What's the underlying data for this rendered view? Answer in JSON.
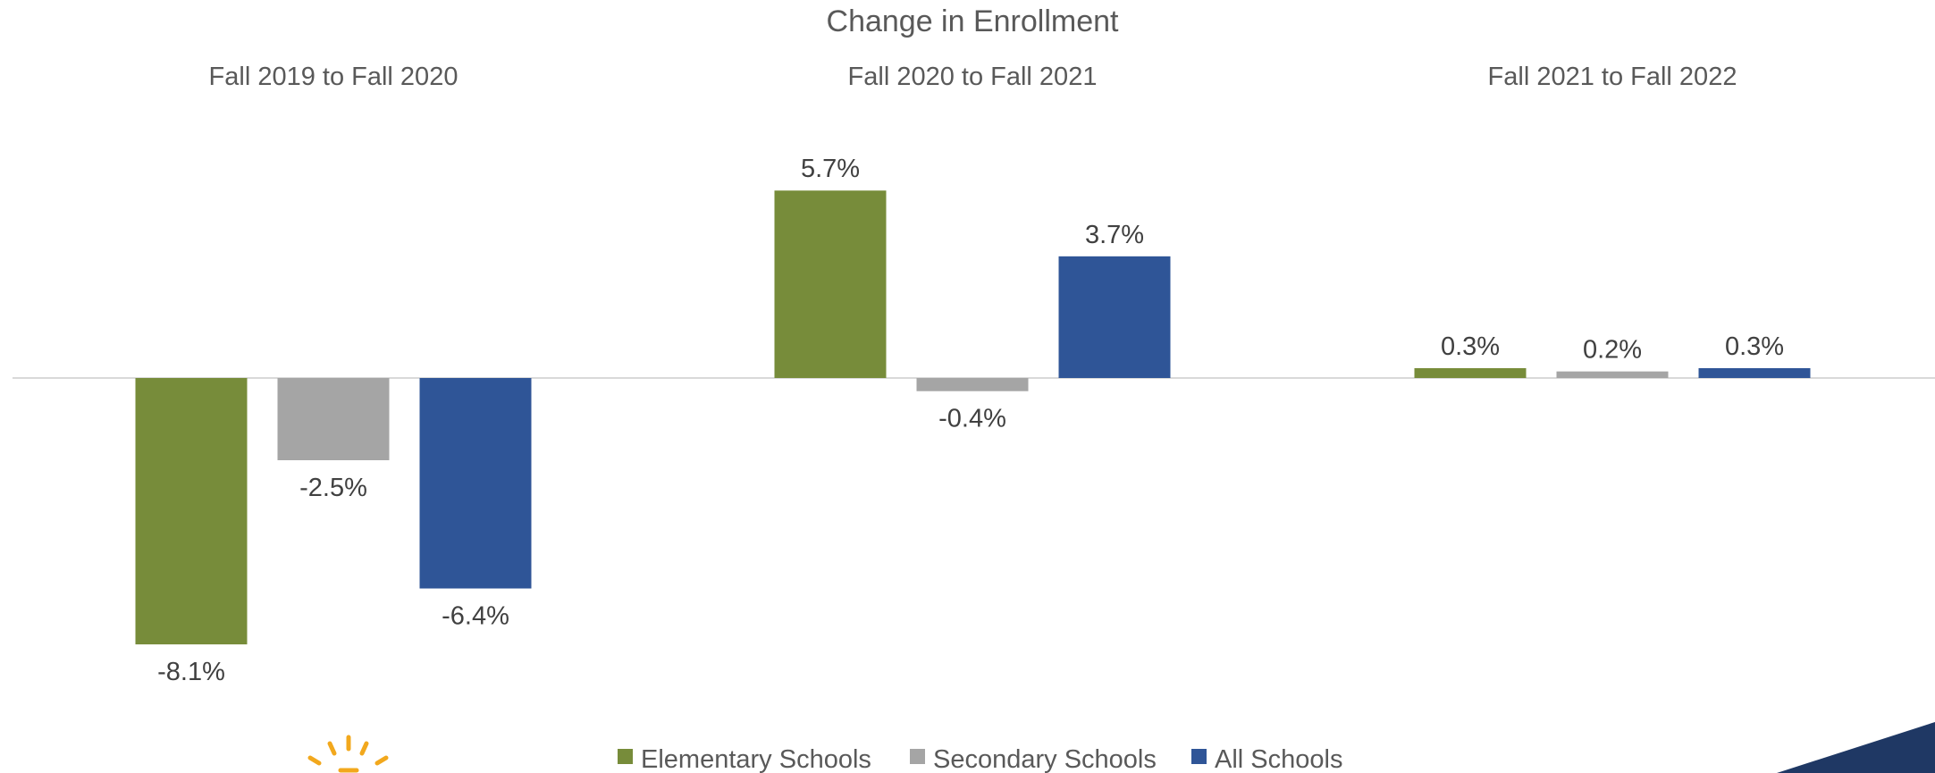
{
  "chart_data": {
    "type": "bar",
    "title": "Change in Enrollment",
    "categories": [
      "Fall 2019 to Fall 2020",
      "Fall 2020 to Fall 2021",
      "Fall 2021 to Fall 2022"
    ],
    "series": [
      {
        "name": "Elementary Schools",
        "color": "#778C3A",
        "values": [
          -8.1,
          5.7,
          0.3
        ],
        "labels": [
          "-8.1%",
          "5.7%",
          "0.3%"
        ]
      },
      {
        "name": "Secondary Schools",
        "color": "#A5A5A5",
        "values": [
          -2.5,
          -0.4,
          0.2
        ],
        "labels": [
          "-2.5%",
          "-0.4%",
          "0.2%"
        ]
      },
      {
        "name": "All Schools",
        "color": "#2F5597",
        "values": [
          -6.4,
          3.7,
          0.3
        ],
        "labels": [
          "-6.4%",
          "3.7%",
          "0.3%"
        ]
      }
    ],
    "ylim": [
      -8.1,
      5.7
    ],
    "grid": false,
    "legend_position": "bottom"
  },
  "colors": {
    "axis": "#D9D9D9",
    "logo_accent": "#F2A81D",
    "corner_shape": "#1F3864"
  },
  "icons": [
    "sunburst-logo-icon",
    "corner-decoration"
  ]
}
